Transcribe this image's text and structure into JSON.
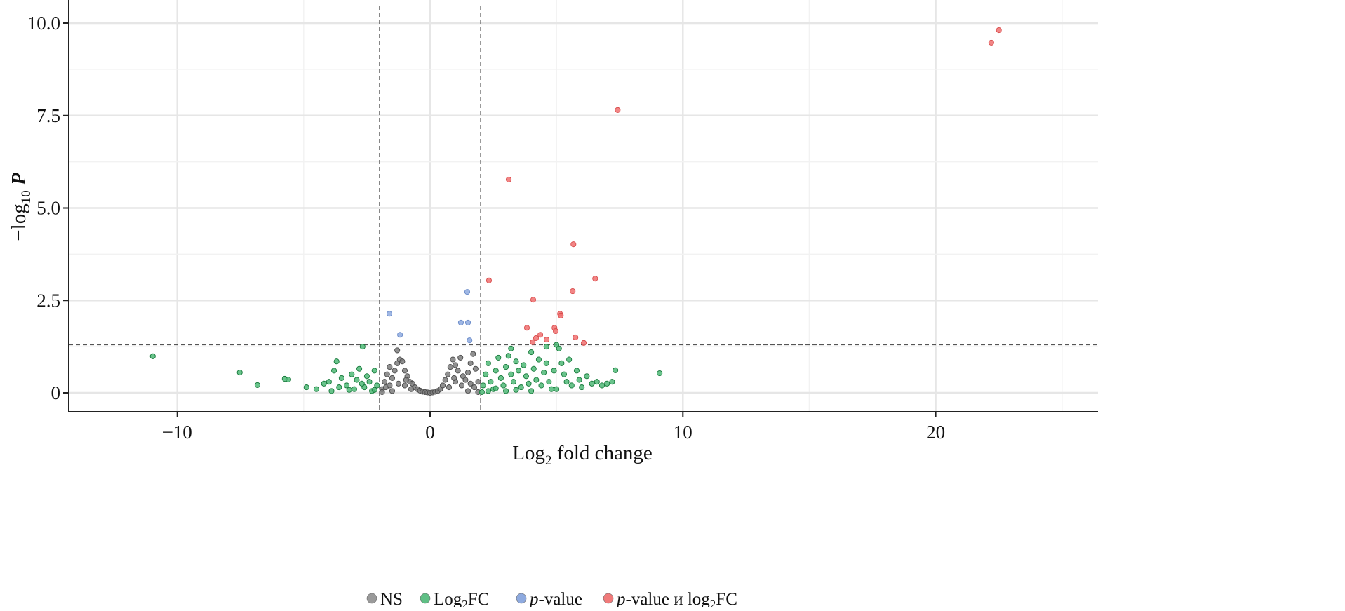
{
  "chart_data": {
    "type": "scatter",
    "title": "",
    "xlabel": {
      "main": "Log",
      "sub": "2",
      "rest": " fold change"
    },
    "ylabel": {
      "prefix": "−log",
      "sub": "10",
      "var": "P"
    },
    "xlim": [
      -14.3,
      26.4
    ],
    "ylim": [
      -0.5,
      10.6
    ],
    "xticks": [
      -10,
      0,
      10,
      20
    ],
    "xtick_labels": [
      "−10",
      "0",
      "10",
      "20"
    ],
    "yticks": [
      0,
      2.5,
      5.0,
      7.5,
      10.0
    ],
    "ytick_labels": [
      "0",
      "2.5",
      "5.0",
      "7.5",
      "10.0"
    ],
    "grid": true,
    "thresholds": {
      "log2fc": [
        -2,
        2
      ],
      "neg_log10_p": 1.3
    },
    "legend_position": "bottom",
    "legend": [
      {
        "label": "NS",
        "color": "#9a9a9a"
      },
      {
        "label_main": "Log",
        "label_sub": "2",
        "label_rest": "FC",
        "color": "#5fbf85"
      },
      {
        "label_italic": "p",
        "label_rest": "-value",
        "color": "#8eaadf"
      },
      {
        "label_italic": "p",
        "label_rest": "-value и log",
        "label_sub": "2",
        "label_tail": "FC",
        "color": "#f07a7a"
      }
    ],
    "series": [
      {
        "name": "NS",
        "fill": "#7d7d7d",
        "stroke": "#4a4a4a",
        "points": [
          [
            -1.9,
            0.1
          ],
          [
            -1.8,
            0.3
          ],
          [
            -1.7,
            0.5
          ],
          [
            -1.6,
            0.7
          ],
          [
            -1.5,
            0.4
          ],
          [
            -1.4,
            0.6
          ],
          [
            -1.3,
            0.8
          ],
          [
            -1.2,
            0.9
          ],
          [
            -1.1,
            0.85
          ],
          [
            -1.0,
            0.6
          ],
          [
            -0.9,
            0.45
          ],
          [
            -0.8,
            0.3
          ],
          [
            -0.7,
            0.25
          ],
          [
            -0.6,
            0.15
          ],
          [
            -0.5,
            0.1
          ],
          [
            -0.4,
            0.06
          ],
          [
            -0.3,
            0.03
          ],
          [
            -0.2,
            0.02
          ],
          [
            -0.1,
            0.01
          ],
          [
            0,
            0
          ],
          [
            0.1,
            0.01
          ],
          [
            0.2,
            0.03
          ],
          [
            0.3,
            0.05
          ],
          [
            0.4,
            0.1
          ],
          [
            0.5,
            0.2
          ],
          [
            0.6,
            0.35
          ],
          [
            0.7,
            0.5
          ],
          [
            0.8,
            0.7
          ],
          [
            0.9,
            0.9
          ],
          [
            1.0,
            0.75
          ],
          [
            1.1,
            0.6
          ],
          [
            1.2,
            0.95
          ],
          [
            1.3,
            0.45
          ],
          [
            1.4,
            0.35
          ],
          [
            1.5,
            0.55
          ],
          [
            1.6,
            0.8
          ],
          [
            1.7,
            1.05
          ],
          [
            1.8,
            0.65
          ],
          [
            1.9,
            0.3
          ],
          [
            -1.75,
            0.15
          ],
          [
            -1.25,
            0.25
          ],
          [
            -0.75,
            0.1
          ],
          [
            0.75,
            0.15
          ],
          [
            1.25,
            0.2
          ],
          [
            1.75,
            0.15
          ],
          [
            -1.5,
            0.05
          ],
          [
            1.5,
            0.05
          ],
          [
            -1.0,
            0.2
          ],
          [
            1.0,
            0.3
          ],
          [
            -1.3,
            1.15
          ],
          [
            -1.9,
            0.02
          ],
          [
            1.9,
            0.02
          ],
          [
            -1.6,
            0.2
          ],
          [
            1.6,
            0.25
          ],
          [
            -0.95,
            0.35
          ],
          [
            0.95,
            0.4
          ]
        ]
      },
      {
        "name": "Log2FC",
        "fill": "#4fb877",
        "stroke": "#16793a",
        "points": [
          [
            -10.97,
            0.99
          ],
          [
            -7.53,
            0.55
          ],
          [
            -6.83,
            0.21
          ],
          [
            -5.75,
            0.38
          ],
          [
            -5.61,
            0.36
          ],
          [
            -4.89,
            0.15
          ],
          [
            -2.67,
            1.25
          ],
          [
            9.08,
            0.53
          ],
          [
            7.33,
            0.61
          ],
          [
            -4.5,
            0.1
          ],
          [
            -4.2,
            0.25
          ],
          [
            -4.0,
            0.3
          ],
          [
            -3.8,
            0.6
          ],
          [
            -3.7,
            0.85
          ],
          [
            -3.5,
            0.4
          ],
          [
            -3.3,
            0.2
          ],
          [
            -3.1,
            0.5
          ],
          [
            -3.0,
            0.1
          ],
          [
            -2.9,
            0.35
          ],
          [
            -2.8,
            0.65
          ],
          [
            -2.6,
            0.15
          ],
          [
            -2.5,
            0.45
          ],
          [
            -2.4,
            0.3
          ],
          [
            -2.3,
            0.05
          ],
          [
            -2.2,
            0.6
          ],
          [
            -2.1,
            0.2
          ],
          [
            -3.9,
            0.05
          ],
          [
            -3.6,
            0.15
          ],
          [
            -2.7,
            0.25
          ],
          [
            2.1,
            0.2
          ],
          [
            2.2,
            0.5
          ],
          [
            2.3,
            0.8
          ],
          [
            2.4,
            0.3
          ],
          [
            2.5,
            0.1
          ],
          [
            2.6,
            0.6
          ],
          [
            2.7,
            0.95
          ],
          [
            2.8,
            0.4
          ],
          [
            2.9,
            0.2
          ],
          [
            3.0,
            0.7
          ],
          [
            3.1,
            1.0
          ],
          [
            3.2,
            0.5
          ],
          [
            3.3,
            0.3
          ],
          [
            3.4,
            0.85
          ],
          [
            3.5,
            0.6
          ],
          [
            3.6,
            0.15
          ],
          [
            3.7,
            0.75
          ],
          [
            3.8,
            0.45
          ],
          [
            3.9,
            0.25
          ],
          [
            4.0,
            1.1
          ],
          [
            4.1,
            0.65
          ],
          [
            4.2,
            0.35
          ],
          [
            4.3,
            0.9
          ],
          [
            4.4,
            0.2
          ],
          [
            4.5,
            0.55
          ],
          [
            4.6,
            0.8
          ],
          [
            4.7,
            0.3
          ],
          [
            4.8,
            0.1
          ],
          [
            4.9,
            0.6
          ],
          [
            5.0,
            1.3
          ],
          [
            5.1,
            1.2
          ],
          [
            5.2,
            0.8
          ],
          [
            5.3,
            0.5
          ],
          [
            5.4,
            0.3
          ],
          [
            5.5,
            0.9
          ],
          [
            5.6,
            0.2
          ],
          [
            5.8,
            0.6
          ],
          [
            5.9,
            0.35
          ],
          [
            6.0,
            0.15
          ],
          [
            6.2,
            0.45
          ],
          [
            6.4,
            0.25
          ],
          [
            6.6,
            0.3
          ],
          [
            6.8,
            0.2
          ],
          [
            7.0,
            0.25
          ],
          [
            7.2,
            0.3
          ],
          [
            3.2,
            1.2
          ],
          [
            4.6,
            1.25
          ],
          [
            2.3,
            0.05
          ],
          [
            3.0,
            0.05
          ],
          [
            4.0,
            0.05
          ],
          [
            2.05,
            0.02
          ],
          [
            2.6,
            0.12
          ],
          [
            3.4,
            0.08
          ],
          [
            5.0,
            0.1
          ],
          [
            -2.2,
            0.08
          ],
          [
            -3.2,
            0.08
          ]
        ]
      },
      {
        "name": "p-value",
        "fill": "#8eaadf",
        "stroke": "#6a8bc9",
        "points": [
          [
            -1.61,
            2.14
          ],
          [
            -1.19,
            1.57
          ],
          [
            1.47,
            2.73
          ],
          [
            1.22,
            1.9
          ],
          [
            1.5,
            1.9
          ],
          [
            1.56,
            1.42
          ]
        ]
      },
      {
        "name": "p-value and log2FC",
        "fill": "#f07070",
        "stroke": "#d84c4c",
        "points": [
          [
            22.5,
            9.81
          ],
          [
            22.2,
            9.47
          ],
          [
            7.42,
            7.65
          ],
          [
            3.11,
            5.77
          ],
          [
            5.67,
            4.02
          ],
          [
            6.53,
            3.09
          ],
          [
            5.64,
            2.75
          ],
          [
            2.33,
            3.04
          ],
          [
            4.08,
            2.52
          ],
          [
            5.14,
            2.14
          ],
          [
            5.17,
            2.09
          ],
          [
            3.83,
            1.76
          ],
          [
            5.75,
            1.5
          ],
          [
            4.36,
            1.57
          ],
          [
            4.19,
            1.48
          ],
          [
            4.61,
            1.44
          ],
          [
            4.92,
            1.76
          ],
          [
            4.97,
            1.67
          ],
          [
            6.08,
            1.35
          ],
          [
            4.06,
            1.37
          ]
        ]
      }
    ]
  }
}
